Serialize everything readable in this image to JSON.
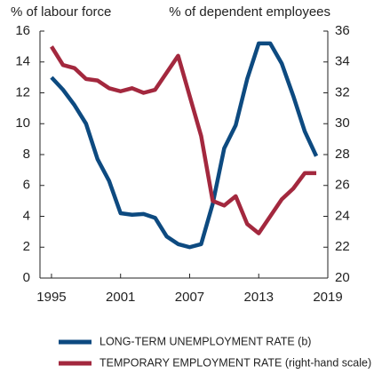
{
  "chart_data": {
    "type": "line",
    "ylabel": "% of labour force",
    "y2label": "% of dependent employees",
    "x": [
      1995,
      1996,
      1997,
      1998,
      1999,
      2000,
      2001,
      2002,
      2003,
      2004,
      2005,
      2006,
      2007,
      2008,
      2009,
      2010,
      2011,
      2012,
      2013,
      2014,
      2015,
      2016,
      2017,
      2018
    ],
    "series": [
      {
        "name": "LONG-TERM UNEMPLOYMENT RATE (b)",
        "color": "#0d4a80",
        "values": [
          13.0,
          12.2,
          11.2,
          10.0,
          7.7,
          6.3,
          4.2,
          4.1,
          4.15,
          3.9,
          2.7,
          2.2,
          2.0,
          2.2,
          4.8,
          8.4,
          9.9,
          12.9,
          15.2,
          15.2,
          13.9,
          11.8,
          9.5,
          7.9
        ]
      },
      {
        "name": "TEMPORARY EMPLOYMENT RATE (right-hand scale)",
        "color": "#a3283e",
        "axis": "y2",
        "values": [
          35.0,
          33.8,
          33.6,
          32.9,
          32.8,
          32.3,
          32.1,
          32.3,
          32.0,
          32.2,
          33.3,
          34.4,
          31.8,
          29.2,
          25.0,
          24.7,
          25.3,
          23.5,
          22.9,
          24.0,
          25.1,
          25.8,
          26.8,
          26.8
        ]
      }
    ],
    "xlim": [
      1994,
      2019
    ],
    "xticks": [
      1995,
      2001,
      2007,
      2013,
      2019
    ],
    "ylim": [
      0,
      16
    ],
    "yticks": [
      0,
      2,
      4,
      6,
      8,
      10,
      12,
      14,
      16
    ],
    "y2lim": [
      20,
      36
    ],
    "y2ticks": [
      20,
      22,
      24,
      26,
      28,
      30,
      32,
      34,
      36
    ]
  }
}
